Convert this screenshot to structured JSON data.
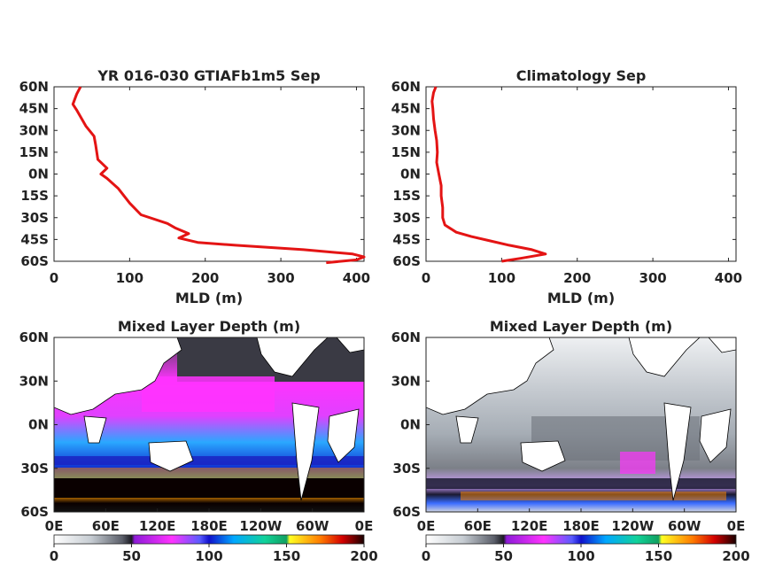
{
  "chart_data": [
    {
      "type": "line",
      "title": "YR 016-030 GTIAFb1m5 Sep",
      "xlabel": "MLD (m)",
      "ylabel": "",
      "xlim": [
        0,
        410
      ],
      "ylim": [
        -60,
        60
      ],
      "xticks": [
        "0",
        "100",
        "200",
        "300",
        "400"
      ],
      "yticks": [
        "60N",
        "45N",
        "30N",
        "15N",
        "0N",
        "15S",
        "30S",
        "45S",
        "60S"
      ],
      "color": "#e41414",
      "series": [
        {
          "x": [
            360,
            400,
            410,
            395,
            330,
            240,
            190,
            165,
            178,
            160,
            150,
            115,
            100,
            85,
            70,
            62,
            70,
            58,
            55,
            53,
            42,
            30,
            25,
            30,
            35
          ],
          "y": [
            -61,
            -59,
            -57,
            -55,
            -52,
            -49,
            -47,
            -44,
            -41,
            -37,
            -34,
            -28,
            -20,
            -10,
            -3,
            0,
            4,
            10,
            20,
            26,
            33,
            44,
            48,
            55,
            60
          ]
        }
      ]
    },
    {
      "type": "line",
      "title": "Climatology Sep",
      "xlabel": "MLD (m)",
      "ylabel": "",
      "xlim": [
        0,
        410
      ],
      "ylim": [
        -60,
        60
      ],
      "xticks": [
        "0",
        "100",
        "200",
        "300",
        "400"
      ],
      "yticks": [
        "60N",
        "45N",
        "30N",
        "15N",
        "0N",
        "15S",
        "30S",
        "45S",
        "60S"
      ],
      "color": "#e41414",
      "series": [
        {
          "x": [
            100,
            125,
            158,
            140,
            110,
            85,
            60,
            40,
            25,
            22,
            22,
            20,
            20,
            17,
            14,
            15,
            14,
            12,
            10,
            9,
            8,
            10,
            13
          ],
          "y": [
            -60,
            -58,
            -55,
            -52,
            -49,
            -46,
            -43,
            -40,
            -35,
            -30,
            -23,
            -15,
            -8,
            0,
            8,
            15,
            23,
            30,
            38,
            45,
            50,
            56,
            60
          ]
        }
      ]
    },
    {
      "type": "heatmap",
      "title": "Mixed Layer Depth (m)",
      "yticks": [
        "60N",
        "30N",
        "0N",
        "30S",
        "60S"
      ],
      "xticks": [
        "0E",
        "60E",
        "120E",
        "180E",
        "120W",
        "60W",
        "0E"
      ],
      "colorbar_ticks": [
        "0",
        "50",
        "100",
        "150",
        "200"
      ],
      "colorbar_range": [
        0,
        200
      ]
    },
    {
      "type": "heatmap",
      "title": "Mixed Layer Depth (m)",
      "yticks": [
        "60N",
        "30N",
        "0N",
        "30S",
        "60S"
      ],
      "xticks": [
        "0E",
        "60E",
        "120E",
        "180E",
        "120W",
        "60W",
        "0E"
      ],
      "colorbar_ticks": [
        "0",
        "50",
        "100",
        "150",
        "200"
      ],
      "colorbar_range": [
        0,
        200
      ]
    }
  ]
}
